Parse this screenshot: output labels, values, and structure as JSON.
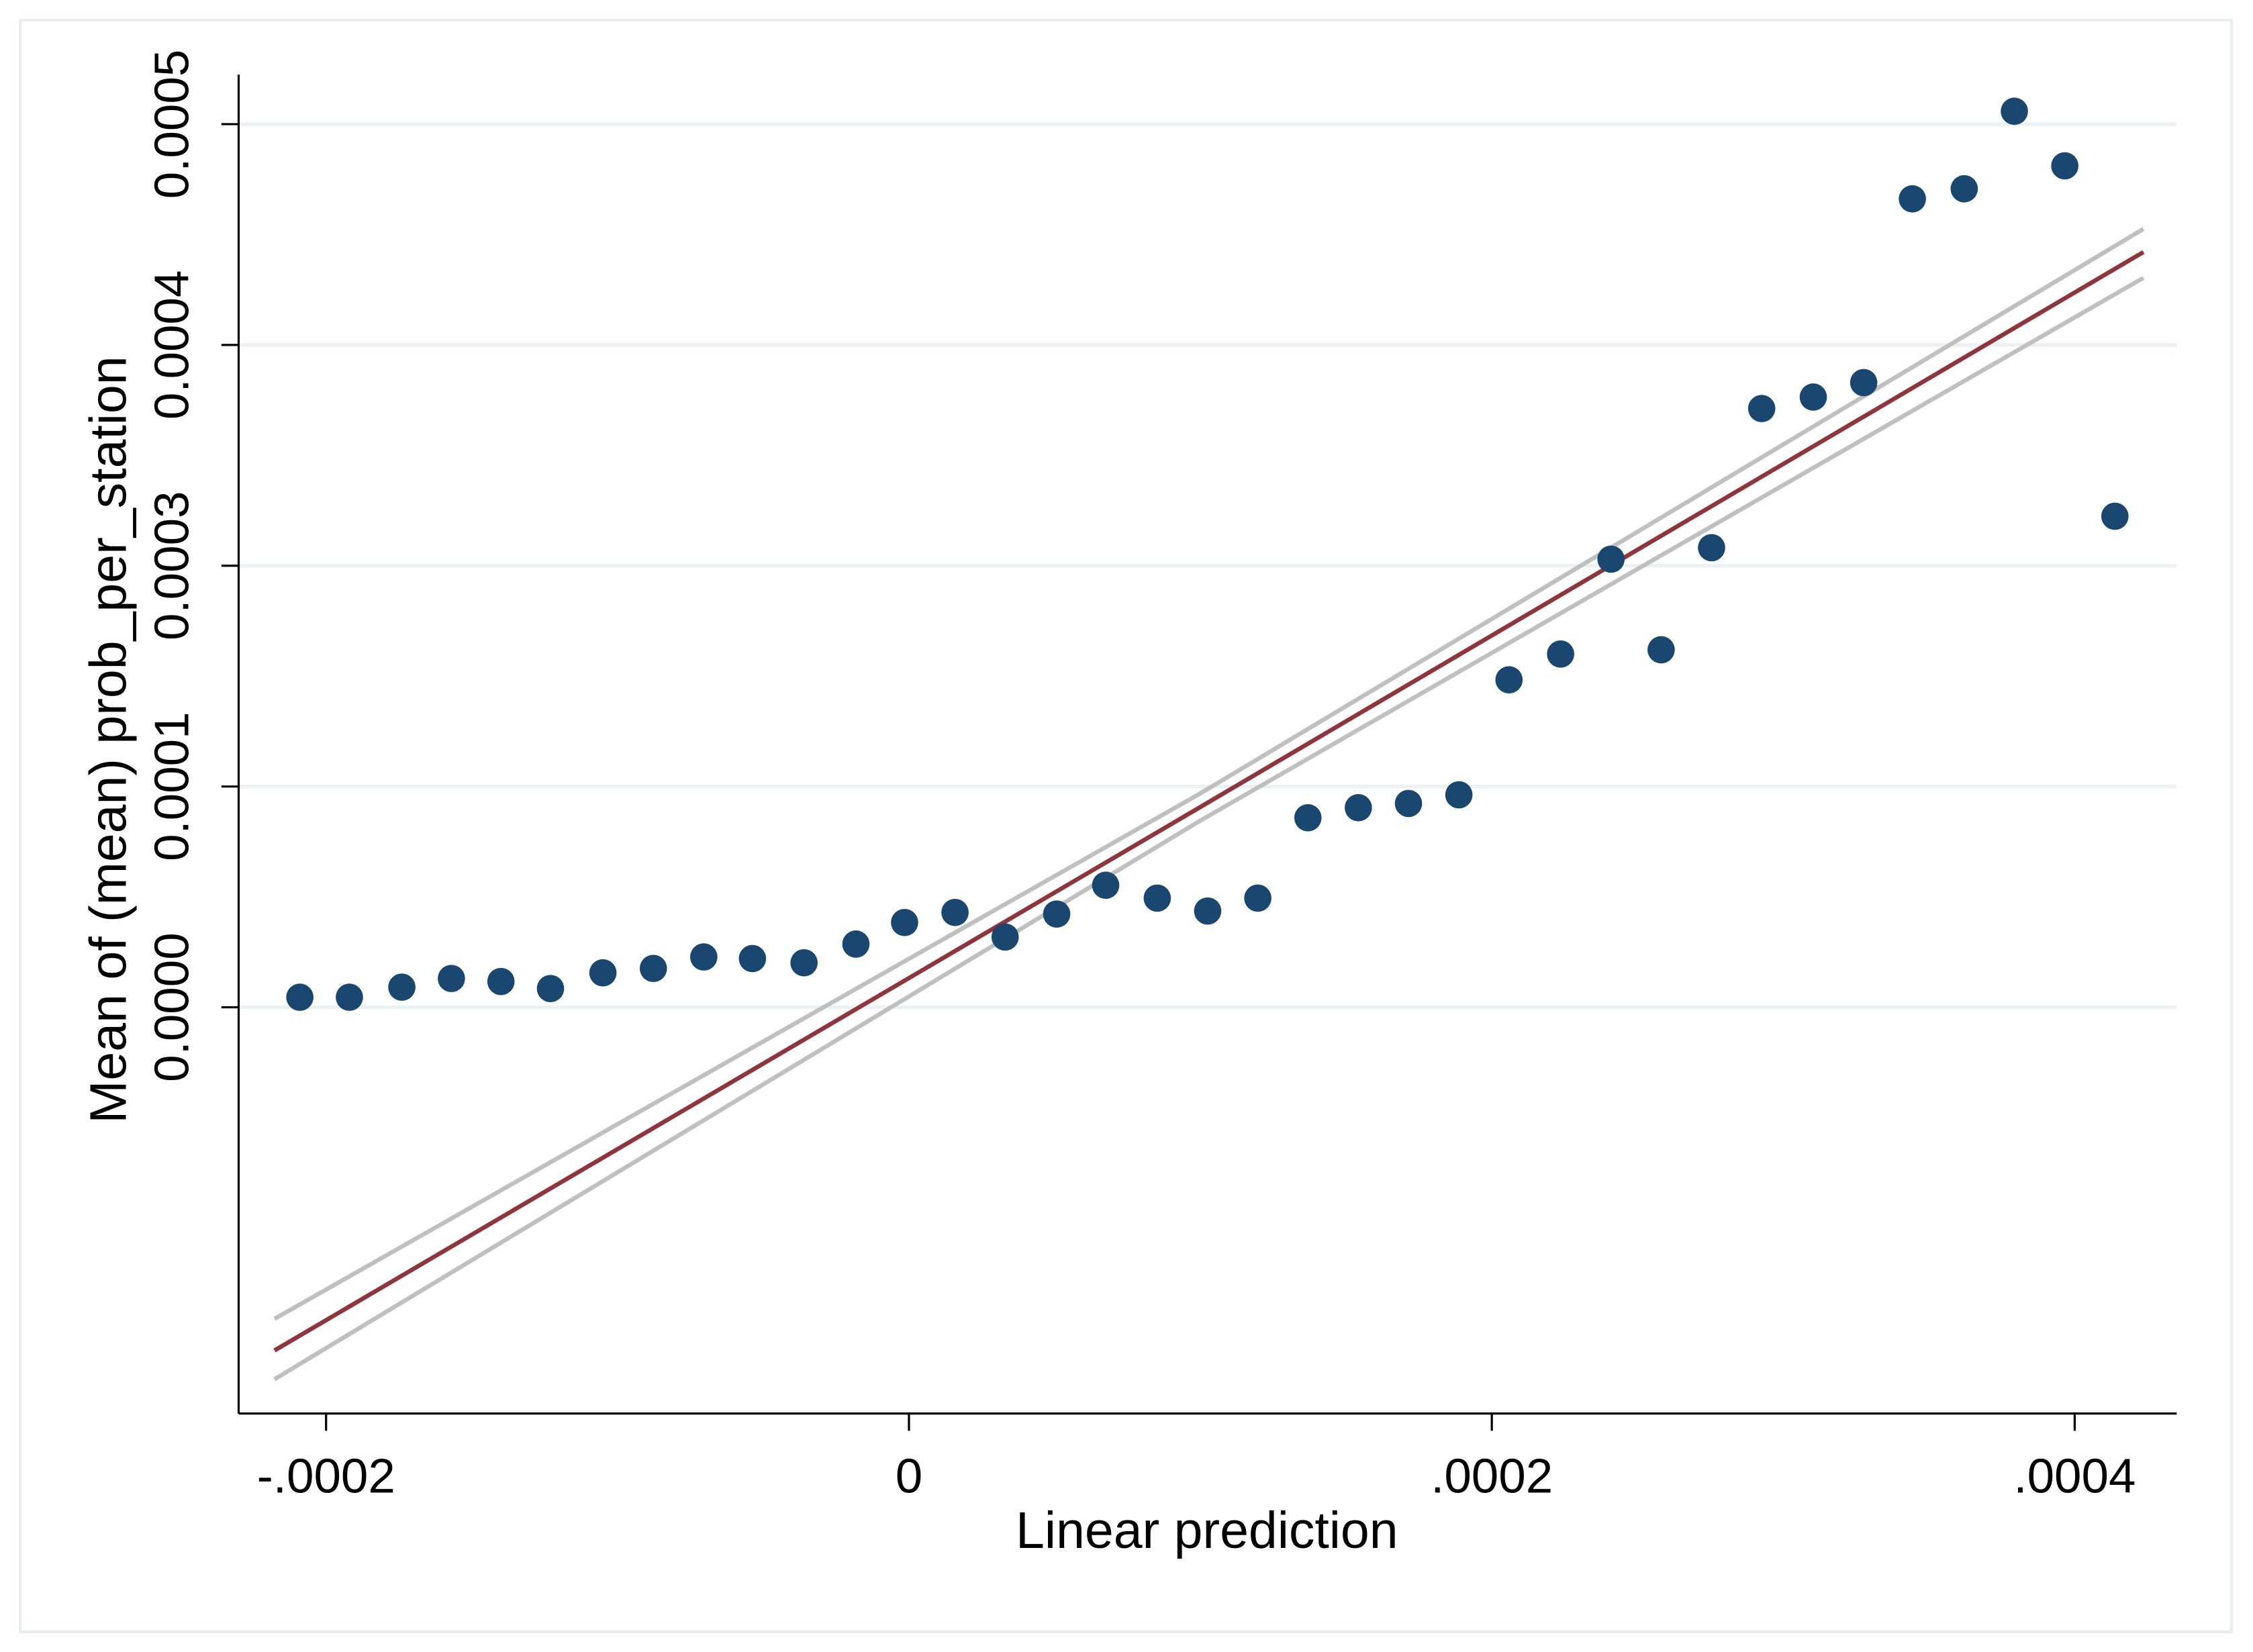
{
  "chart_data": {
    "type": "scatter",
    "x_label": "Linear prediction",
    "y_label": "Mean of (mean) prob_per_station",
    "color": "#1a476f",
    "x": [
      -0.000209,
      -0.000192,
      -0.000174,
      -0.000157,
      -0.00014,
      -0.000123,
      -0.000105,
      -8.77e-05,
      -7.04e-05,
      -5.37e-05,
      -3.6e-05,
      -1.82e-05,
      -1.5e-06,
      1.58e-05,
      3.3e-05,
      5.07e-05,
      6.75e-05,
      8.52e-05,
      0.0001025,
      0.0001197,
      0.0001369,
      0.0001542,
      0.0001714,
      0.0001887,
      0.0002059,
      0.0002236,
      0.0002409,
      0.0002581,
      0.0002754,
      0.0002926,
      0.0003103,
      0.0003276,
      0.0003443,
      0.0003621,
      0.0003793,
      0.0003966,
      0.0004138
    ],
    "values": [
      5.7e-06,
      5.7e-06,
      1.14e-05,
      1.63e-05,
      1.46e-05,
      1.06e-05,
      1.95e-05,
      2.2e-05,
      2.85e-05,
      2.76e-05,
      2.52e-05,
      3.58e-05,
      4.8e-05,
      5.37e-05,
      3.98e-05,
      5.28e-05,
      6.91e-05,
      6.18e-05,
      5.45e-05,
      6.18e-05,
      0.0001073,
      0.000113,
      0.0001154,
      0.0001203,
      0.0001854,
      0.0002,
      0.0002537,
      0.0002024,
      0.0002602,
      0.000339,
      0.0003455,
      0.0003537,
      0.0004577,
      0.0004634,
      0.0005073,
      0.0004764,
      0.000278
    ],
    "fit": {
      "color": "#90353b",
      "ci_color": "#c0c0c0",
      "x": [
        -0.0002177,
        0.0001,
        0.0004236
      ],
      "values": [
        -0.0001943,
        0.0001134,
        0.0004276
      ],
      "upper": [
        -0.0001764,
        0.0001211,
        0.0004407
      ],
      "lower": [
        -0.0002106,
        0.0001057,
        0.000413
      ]
    },
    "xlim": [
      -0.00023,
      0.000435
    ],
    "ylim": [
      -0.00023,
      0.000528
    ],
    "xticks": [
      {
        "value": -0.0002,
        "label": "-.0002"
      },
      0,
      {
        "value": 0.0002,
        "label": ".0002"
      },
      {
        "value": 0.0004,
        "label": ".0004"
      }
    ],
    "yticks": [
      {
        "value": 0,
        "label": "0.0000"
      },
      {
        "value": 0.000125,
        "label": "0.0001"
      },
      {
        "value": 0.00025,
        "label": "0.0003"
      },
      {
        "value": 0.000375,
        "label": "0.0004"
      },
      {
        "value": 0.0005,
        "label": "0.0005"
      }
    ],
    "grid": true
  }
}
